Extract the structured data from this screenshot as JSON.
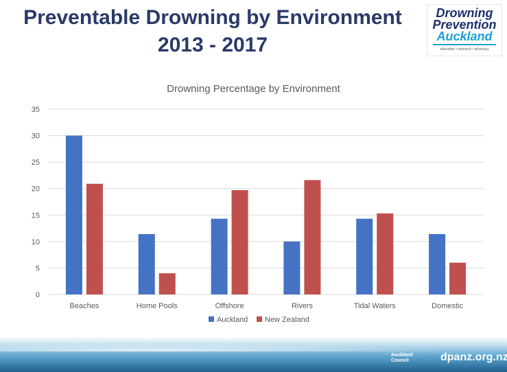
{
  "slide": {
    "title_line1": "Preventable Drowning by Environment",
    "title_line2": "2013 - 2017",
    "logo": {
      "line1": "Drowning",
      "line2": "Prevention",
      "line3": "Auckland",
      "tagline": "education • research • advocacy"
    },
    "council": {
      "line1": "Auckland",
      "line2": "Council"
    },
    "website": "dpanz.org.nz"
  },
  "colors": {
    "auckland": "#4472c4",
    "new_zealand": "#c0504d",
    "title": "#2b3a67",
    "grid": "#d9d9d9"
  },
  "chart_data": {
    "type": "bar",
    "title": "Drowning Percentage by Environment",
    "categories": [
      "Beaches",
      "Home Pools",
      "Offshore",
      "Rivers",
      "Tidal Waters",
      "Domestic"
    ],
    "series": [
      {
        "name": "Auckland",
        "values": [
          30,
          11.4,
          14.3,
          10,
          14.3,
          11.4
        ]
      },
      {
        "name": "New Zealand",
        "values": [
          20.9,
          4,
          19.7,
          21.6,
          15.3,
          6
        ]
      }
    ],
    "yticks": [
      0,
      5,
      10,
      15,
      20,
      25,
      30,
      35
    ],
    "ylim": [
      0,
      35
    ],
    "grid": true,
    "legend": "bottom"
  }
}
